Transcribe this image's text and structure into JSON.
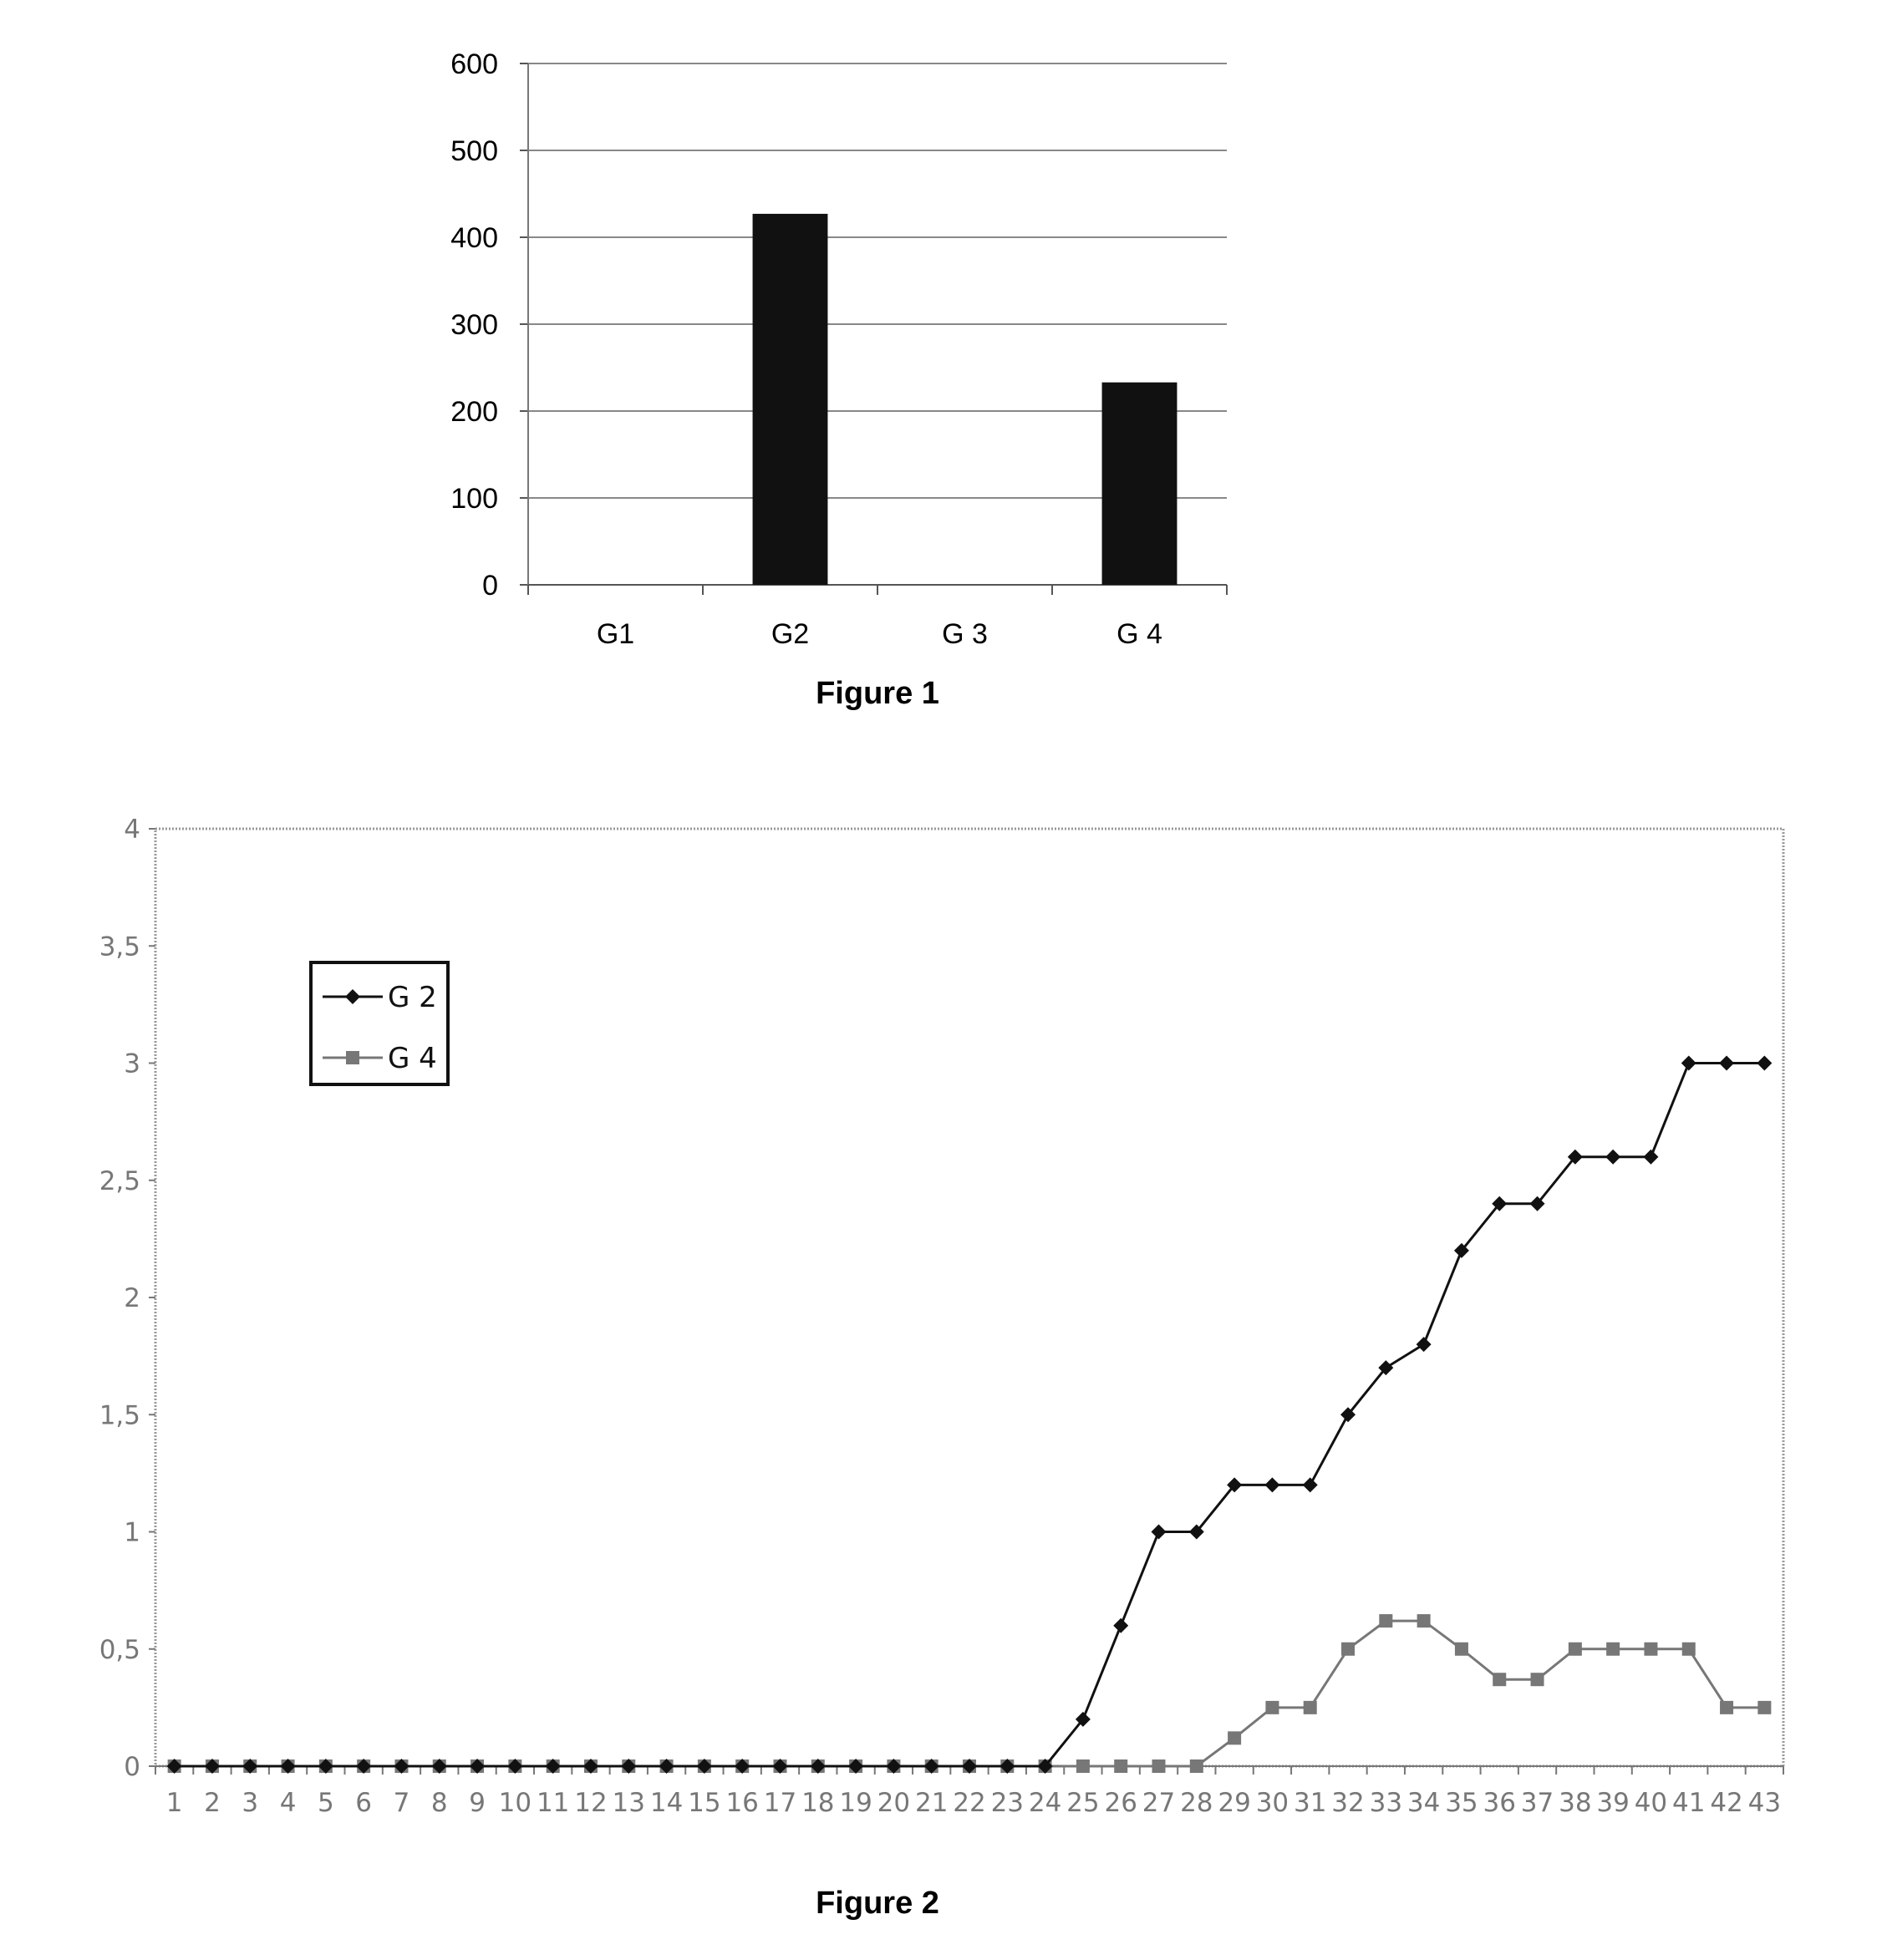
{
  "chart_data": [
    {
      "type": "bar",
      "categories": [
        "G1",
        "G2",
        "G 3",
        "G 4"
      ],
      "values": [
        0,
        427,
        0,
        233
      ],
      "ylim": [
        0,
        600
      ],
      "yticks": [
        0,
        100,
        200,
        300,
        400,
        500,
        600
      ],
      "grid": true,
      "bar_color": "#111111",
      "caption": "Figure 1"
    },
    {
      "type": "line",
      "x": [
        1,
        2,
        3,
        4,
        5,
        6,
        7,
        8,
        9,
        10,
        11,
        12,
        13,
        14,
        15,
        16,
        17,
        18,
        19,
        20,
        21,
        22,
        23,
        24,
        25,
        26,
        27,
        28,
        29,
        30,
        31,
        32,
        33,
        34,
        35,
        36,
        37,
        38,
        39,
        40,
        41,
        42,
        43
      ],
      "series": [
        {
          "name": "G 2",
          "marker": "diamond",
          "color": "#111111",
          "values": [
            0,
            0,
            0,
            0,
            0,
            0,
            0,
            0,
            0,
            0,
            0,
            0,
            0,
            0,
            0,
            0,
            0,
            0,
            0,
            0,
            0,
            0,
            0,
            0,
            0.2,
            0.6,
            1,
            1,
            1.2,
            1.2,
            1.2,
            1.5,
            1.7,
            1.8,
            2.2,
            2.4,
            2.4,
            2.6,
            2.6,
            2.6,
            3,
            3,
            3
          ]
        },
        {
          "name": "G 4",
          "marker": "square",
          "color": "#777777",
          "values": [
            0,
            0,
            0,
            0,
            0,
            0,
            0,
            0,
            0,
            0,
            0,
            0,
            0,
            0,
            0,
            0,
            0,
            0,
            0,
            0,
            0,
            0,
            0,
            0,
            0,
            0,
            0,
            0,
            0.12,
            0.25,
            0.25,
            0.5,
            0.62,
            0.62,
            0.5,
            0.37,
            0.37,
            0.5,
            0.5,
            0.5,
            0.5,
            0.25,
            0.25
          ]
        }
      ],
      "ylim": [
        0,
        4
      ],
      "yticks": [
        "0",
        "0,5",
        "1",
        "1,5",
        "2",
        "2,5",
        "3",
        "3,5",
        "4"
      ],
      "legend_position": "top-left",
      "grid": false,
      "caption": "Figure 2"
    }
  ]
}
